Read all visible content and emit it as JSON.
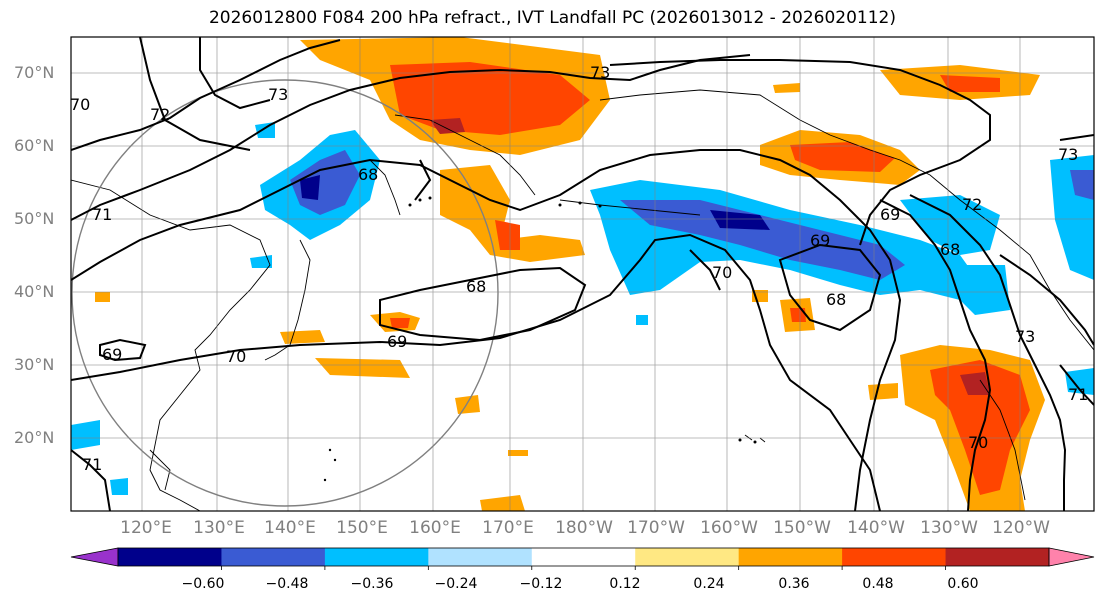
{
  "title": "2026012800 F084 200 hPa refract., IVT Landfall PC (2026013012 - 2026020112)",
  "lat_labels": [
    "70°N",
    "60°N",
    "50°N",
    "40°N",
    "30°N",
    "20°N"
  ],
  "lon_labels": [
    "120°E",
    "130°E",
    "140°E",
    "150°E",
    "160°E",
    "170°E",
    "180°W",
    "170°W",
    "160°W",
    "150°W",
    "140°W",
    "130°W",
    "120°W"
  ],
  "contour_labels": [
    "73",
    "72",
    "70",
    "71",
    "68",
    "69",
    "68",
    "69",
    "70",
    "71",
    "69",
    "70",
    "68",
    "73",
    "73",
    "72",
    "70",
    "73",
    "71",
    "69",
    "68"
  ],
  "colorbar": {
    "colors": [
      "#9932cc",
      "#00008b",
      "#3a5bd3",
      "#00bfff",
      "#b0e2ff",
      "#ffffff",
      "#ffe883",
      "#ffa500",
      "#ff4500",
      "#b22222",
      "#ff82ab"
    ],
    "tick_labels": [
      "−0.60",
      "−0.48",
      "−0.36",
      "−0.24",
      "−0.12",
      "0.12",
      "0.24",
      "0.36",
      "0.48",
      "0.60"
    ]
  }
}
